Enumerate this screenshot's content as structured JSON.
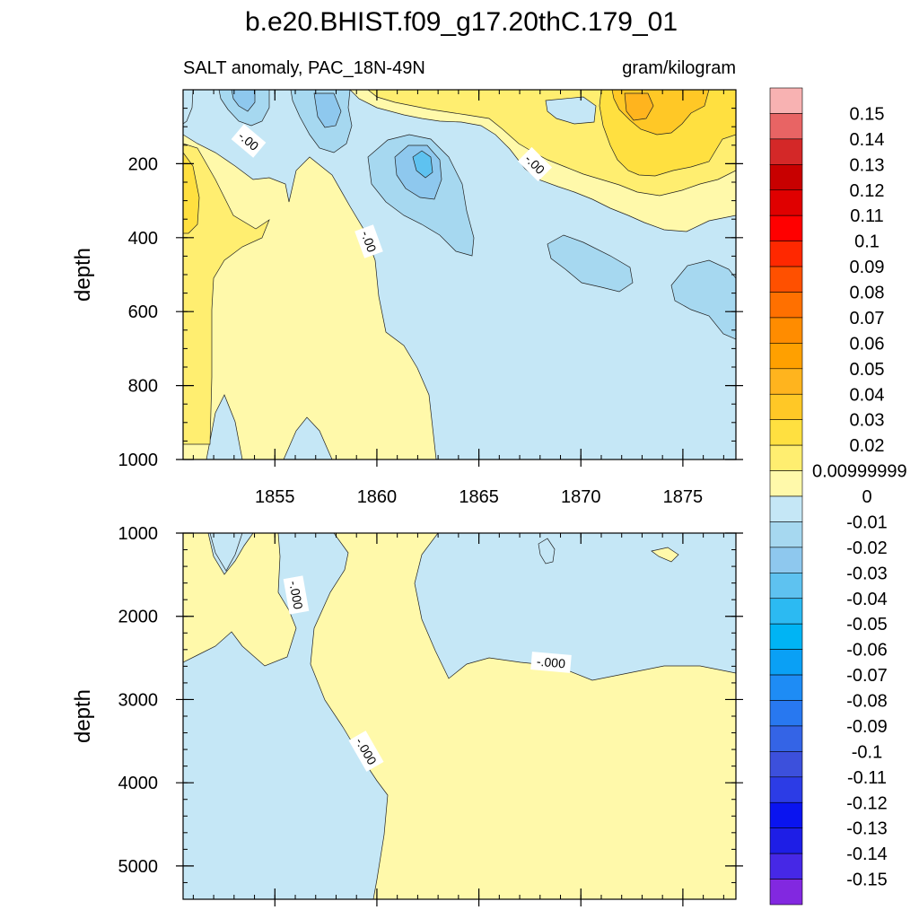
{
  "title": "b.e20.BHIST.f09_g17.20thC.179_01",
  "chart_data": {
    "type": "heatmap",
    "subtitle_left": "SALT anomaly, PAC_18N-49N",
    "subtitle_right": "gram/kilogram",
    "x_tick_labels": [
      "1855",
      "1860",
      "1865",
      "1870",
      "1875"
    ],
    "x_ticks": [
      1855,
      1860,
      1865,
      1870,
      1875
    ],
    "xlim": [
      1850.5,
      1877.6
    ],
    "grid": false,
    "panels": [
      {
        "ylabel": "depth",
        "ylim": [
          0,
          1000
        ],
        "y_ticks": [
          200,
          400,
          600,
          800,
          1000
        ],
        "y_tick_labels": [
          "200",
          "400",
          "600",
          "800",
          "1000"
        ],
        "contour_labels": [
          "-.00",
          "-.00",
          "-.00"
        ]
      },
      {
        "ylabel": "depth",
        "ylim": [
          1000,
          5400
        ],
        "y_ticks": [
          1000,
          2000,
          3000,
          4000,
          5000
        ],
        "y_tick_labels": [
          "1000",
          "2000",
          "3000",
          "4000",
          "5000"
        ],
        "contour_labels": [
          "-.000",
          "-.000",
          "-.000"
        ]
      }
    ],
    "colorbar": {
      "labels": [
        "0.15",
        "0.14",
        "0.13",
        "0.12",
        "0.11",
        "0.1",
        "0.09",
        "0.08",
        "0.07",
        "0.06",
        "0.05",
        "0.04",
        "0.03",
        "0.02",
        "0.00999999",
        "0",
        "-0.01",
        "-0.02",
        "-0.03",
        "-0.04",
        "-0.05",
        "-0.06",
        "-0.07",
        "-0.08",
        "-0.09",
        "-0.1",
        "-0.11",
        "-0.12",
        "-0.13",
        "-0.14",
        "-0.15"
      ],
      "colors": [
        "#f8b2b2",
        "#e86464",
        "#d42828",
        "#c80000",
        "#e00000",
        "#ff0000",
        "#ff2800",
        "#ff5000",
        "#ff7000",
        "#ff8c00",
        "#ffa000",
        "#ffb41e",
        "#ffc826",
        "#ffe040",
        "#ffee70",
        "#fff9aa",
        "#c5e7f6",
        "#a6d8f0",
        "#8ec8ee",
        "#5ec2f0",
        "#2cbaf2",
        "#00b4f4",
        "#0aa0f5",
        "#1e8cf5",
        "#2878f0",
        "#3464e6",
        "#3c50dc",
        "#2c3ce6",
        "#0a14f0",
        "#1e1ee6",
        "#4628e6",
        "#8228e0"
      ]
    }
  }
}
